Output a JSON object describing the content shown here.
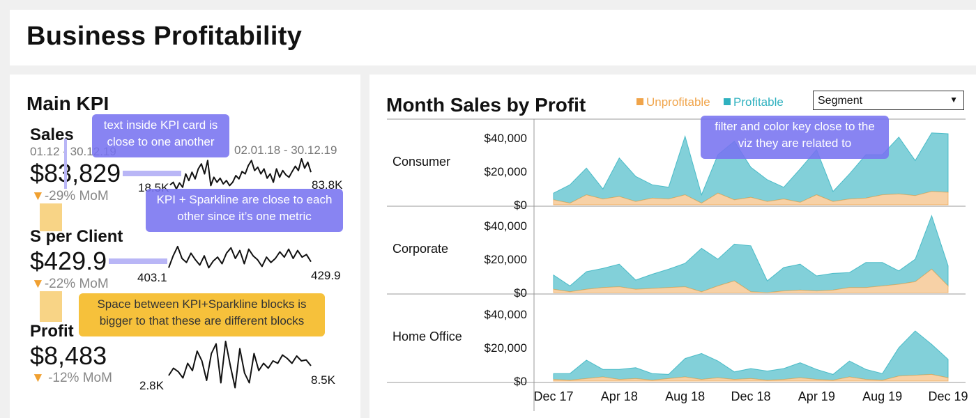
{
  "title": "Business Profitability",
  "kpi_panel": {
    "title": "Main KPI",
    "kpis": [
      {
        "name": "Sales",
        "date_left": "01.12 - 30.12.19",
        "date_right": "02.01.18 - 30.12.19",
        "value": "$83,829",
        "mom_arrow": "▼",
        "mom": "-29% MoM",
        "spark_start": "18.5K",
        "spark_end": "83.8K"
      },
      {
        "name": "S per Client",
        "value": "$429.9",
        "mom_arrow": "▼",
        "mom": "-22% MoM",
        "spark_start": "403.1",
        "spark_end": "429.9"
      },
      {
        "name": "Profit",
        "value": "$8,483",
        "mom_arrow": "▼",
        "mom": " -12% MoM",
        "spark_start": "2.8K",
        "spark_end": "8.5K"
      }
    ],
    "sparklines": [
      [
        0.22,
        0.3,
        0.1,
        0.28,
        0.15,
        0.55,
        0.35,
        0.6,
        0.4,
        0.7,
        0.85,
        0.55,
        0.95,
        0.2,
        0.45,
        0.3,
        0.42,
        0.25,
        0.35,
        0.2,
        0.3,
        0.5,
        0.4,
        0.62,
        0.55,
        0.8,
        0.95,
        0.65,
        0.75,
        0.55,
        0.7,
        0.42,
        0.55,
        0.3,
        0.7,
        0.45,
        0.65,
        0.52,
        0.45,
        0.62,
        0.78,
        0.65,
        1.0,
        0.72,
        0.9,
        0.6
      ],
      [
        0.15,
        0.6,
        0.95,
        0.5,
        0.35,
        0.7,
        0.45,
        0.25,
        0.6,
        0.15,
        0.4,
        0.55,
        0.3,
        0.7,
        0.9,
        0.5,
        0.8,
        0.3,
        0.85,
        0.6,
        0.45,
        0.2,
        0.55,
        0.35,
        0.5,
        0.75,
        0.55,
        0.85,
        0.5,
        0.8,
        0.55,
        0.65,
        0.38
      ],
      [
        0.3,
        0.45,
        0.38,
        0.25,
        0.55,
        0.4,
        0.8,
        0.6,
        0.2,
        0.75,
        0.95,
        0.15,
        1.0,
        0.5,
        0.05,
        0.85,
        0.35,
        0.15,
        0.75,
        0.4,
        0.55,
        0.45,
        0.6,
        0.55,
        0.72,
        0.65,
        0.55,
        0.7,
        0.6,
        0.62,
        0.5
      ]
    ]
  },
  "chart_panel": {
    "title": "Month Sales by Profit",
    "segment_label": "Segment",
    "legend": [
      {
        "label": "Unprofitable",
        "color": "#f0a44a"
      },
      {
        "label": "Profitable",
        "color": "#2fb1bf"
      }
    ]
  },
  "callouts": {
    "kpi_text": "text inside KPI card is close to one another",
    "kpi_sparkline": "KPI + Sparkline are close to each other since it’s one metric",
    "space_between": "Space between KPI+Sparkline blocks is bigger to that these are different blocks",
    "filter_key": "filter and color key close to the viz they are related to"
  },
  "chart_data": {
    "type": "area",
    "title": "Month Sales by Profit",
    "x": [
      "Dec 17",
      "Jan 18",
      "Feb 18",
      "Mar 18",
      "Apr 18",
      "May 18",
      "Jun 18",
      "Jul 18",
      "Aug 18",
      "Sep 18",
      "Oct 18",
      "Nov 18",
      "Dec 18",
      "Jan 19",
      "Feb 19",
      "Mar 19",
      "Apr 19",
      "May 19",
      "Jun 19",
      "Jul 19",
      "Aug 19",
      "Sep 19",
      "Oct 19",
      "Nov 19",
      "Dec 19"
    ],
    "x_ticks": [
      "Dec 17",
      "Apr 18",
      "Aug 18",
      "Dec 18",
      "Apr 19",
      "Aug 19",
      "Dec 19"
    ],
    "y_ticks": [
      "$0",
      "$20,000",
      "$40,000"
    ],
    "ylim": [
      0,
      45000
    ],
    "stacked": true,
    "legend": "top",
    "facets": [
      {
        "segment": "Consumer",
        "series": [
          {
            "name": "Unprofitable",
            "values": [
              3000,
              1000,
              6000,
              3500,
              5000,
              2000,
              4000,
              3500,
              6000,
              1000,
              7000,
              3000,
              4500,
              2000,
              3500,
              1500,
              6000,
              2000,
              3500,
              4000,
              6000,
              6500,
              5500,
              8000,
              7500
            ]
          },
          {
            "name": "Profitable",
            "values": [
              4000,
              11000,
              16000,
              6000,
              23000,
              15000,
              8000,
              7000,
              35000,
              5000,
              23000,
              35000,
              18000,
              13000,
              7000,
              20000,
              27000,
              6000,
              15000,
              26000,
              24000,
              34000,
              21000,
              35000,
              35000
            ]
          }
        ]
      },
      {
        "segment": "Corporate",
        "series": [
          {
            "name": "Unprofitable",
            "values": [
              2000,
              500,
              2000,
              3000,
              3500,
              2000,
              2500,
              3000,
              3500,
              500,
              4000,
              7000,
              500,
              0,
              1000,
              1500,
              1000,
              1500,
              3000,
              3000,
              4000,
              5000,
              6500,
              14000,
              4000
            ]
          },
          {
            "name": "Profitable",
            "values": [
              8500,
              3500,
              10500,
              11500,
              13500,
              5500,
              8500,
              11000,
              14000,
              26000,
              16000,
              22000,
              27500,
              7000,
              14000,
              15500,
              9000,
              10000,
              9000,
              15000,
              14000,
              8000,
              13500,
              32000,
              12000
            ]
          }
        ]
      },
      {
        "segment": "Home Office",
        "series": [
          {
            "name": "Unprofitable",
            "values": [
              1000,
              500,
              1500,
              2500,
              1000,
              1500,
              500,
              1500,
              2500,
              1000,
              2000,
              1000,
              1500,
              500,
              1000,
              2000,
              1000,
              500,
              2500,
              1000,
              500,
              3000,
              3500,
              4000,
              2000
            ]
          },
          {
            "name": "Profitable",
            "values": [
              3500,
              4000,
              11000,
              4500,
              6000,
              6500,
              4000,
              2500,
              11000,
              15500,
              10000,
              4500,
              6000,
              5500,
              6500,
              9000,
              6000,
              3500,
              9500,
              6000,
              4000,
              17000,
              26500,
              18000,
              11000
            ]
          }
        ]
      }
    ]
  }
}
